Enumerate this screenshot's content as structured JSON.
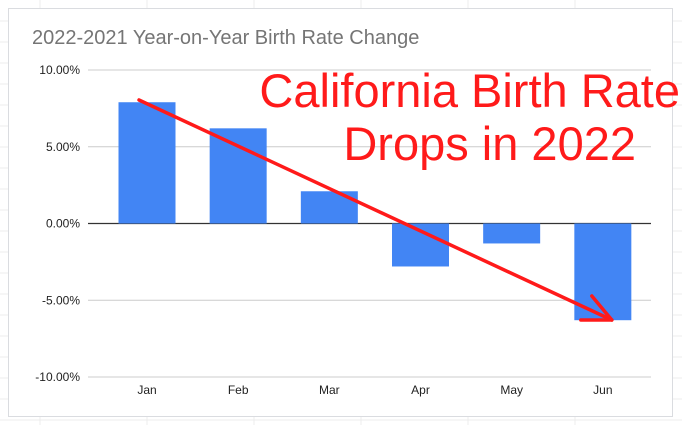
{
  "chart_data": {
    "type": "bar",
    "title": "2022-2021 Year-on-Year Birth Rate Change",
    "categories": [
      "Jan",
      "Feb",
      "Mar",
      "Apr",
      "May",
      "Jun"
    ],
    "values": [
      7.9,
      6.2,
      2.1,
      -2.8,
      -1.3,
      -6.3
    ],
    "y_ticks": [
      "10.00%",
      "5.00%",
      "0.00%",
      "-5.00%",
      "-10.00%"
    ],
    "ylim": [
      -10,
      10
    ],
    "xlabel": "",
    "ylabel": "",
    "grid": true,
    "bar_color": "#4285f4",
    "annotation": {
      "line1": "California Birth Rate",
      "line2": "Drops in 2022",
      "color": "#ff1a1a"
    }
  }
}
